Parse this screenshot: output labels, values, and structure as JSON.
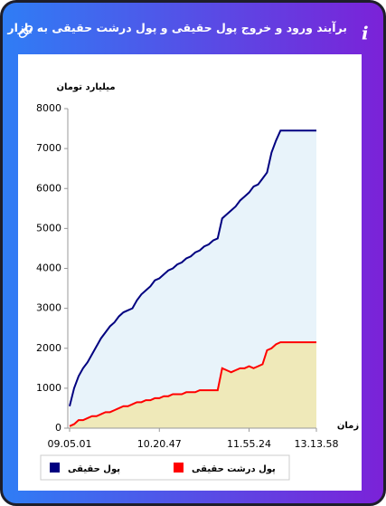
{
  "header": {
    "title": "برآیند ورود و خروج پول حقیقی و پول درشت حقیقی به بازار"
  },
  "chart_data": {
    "type": "area",
    "y_axis_label": "میلیارد تومان",
    "x_axis_label": "زمان",
    "watermark": "LiveTSE.ir",
    "x": [
      "09.05.01",
      null,
      null,
      null,
      null,
      null,
      null,
      null,
      null,
      null,
      null,
      null,
      null,
      null,
      null,
      null,
      null,
      null,
      null,
      null,
      "10.20.47",
      null,
      null,
      null,
      null,
      null,
      null,
      null,
      null,
      null,
      null,
      null,
      null,
      null,
      null,
      null,
      null,
      null,
      null,
      null,
      "11.55.24",
      null,
      null,
      null,
      null,
      null,
      null,
      null,
      null,
      null,
      null,
      null,
      null,
      null,
      null,
      "13.13.58"
    ],
    "ylim": [
      0,
      8000
    ],
    "yticks": [
      0,
      1000,
      2000,
      3000,
      4000,
      5000,
      6000,
      7000,
      8000
    ],
    "series": [
      {
        "name": "پول حقیقی",
        "color": "#000080",
        "area_color": "#e8f3fa",
        "values": [
          550,
          1000,
          1300,
          1500,
          1650,
          1850,
          2050,
          2250,
          2400,
          2550,
          2650,
          2800,
          2900,
          2950,
          3000,
          3200,
          3350,
          3450,
          3550,
          3700,
          3750,
          3850,
          3950,
          4000,
          4100,
          4150,
          4250,
          4300,
          4400,
          4450,
          4550,
          4600,
          4700,
          4750,
          5250,
          5350,
          5450,
          5550,
          5700,
          5800,
          5900,
          6050,
          6100,
          6250,
          6400,
          6900,
          7200,
          7450,
          7450,
          7450,
          7450,
          7450,
          7450,
          7450,
          7450,
          7450
        ]
      },
      {
        "name": "پول درشت حقیقی",
        "color": "#ff0000",
        "area_color": "#efe9b9",
        "values": [
          50,
          100,
          200,
          200,
          250,
          300,
          300,
          350,
          400,
          400,
          450,
          500,
          550,
          550,
          600,
          650,
          650,
          700,
          700,
          750,
          750,
          800,
          800,
          850,
          850,
          850,
          900,
          900,
          900,
          950,
          950,
          950,
          950,
          950,
          1500,
          1450,
          1400,
          1450,
          1500,
          1500,
          1550,
          1500,
          1550,
          1600,
          1950,
          2000,
          2100,
          2150,
          2150,
          2150,
          2150,
          2150,
          2150,
          2150,
          2150,
          2150
        ]
      }
    ]
  }
}
